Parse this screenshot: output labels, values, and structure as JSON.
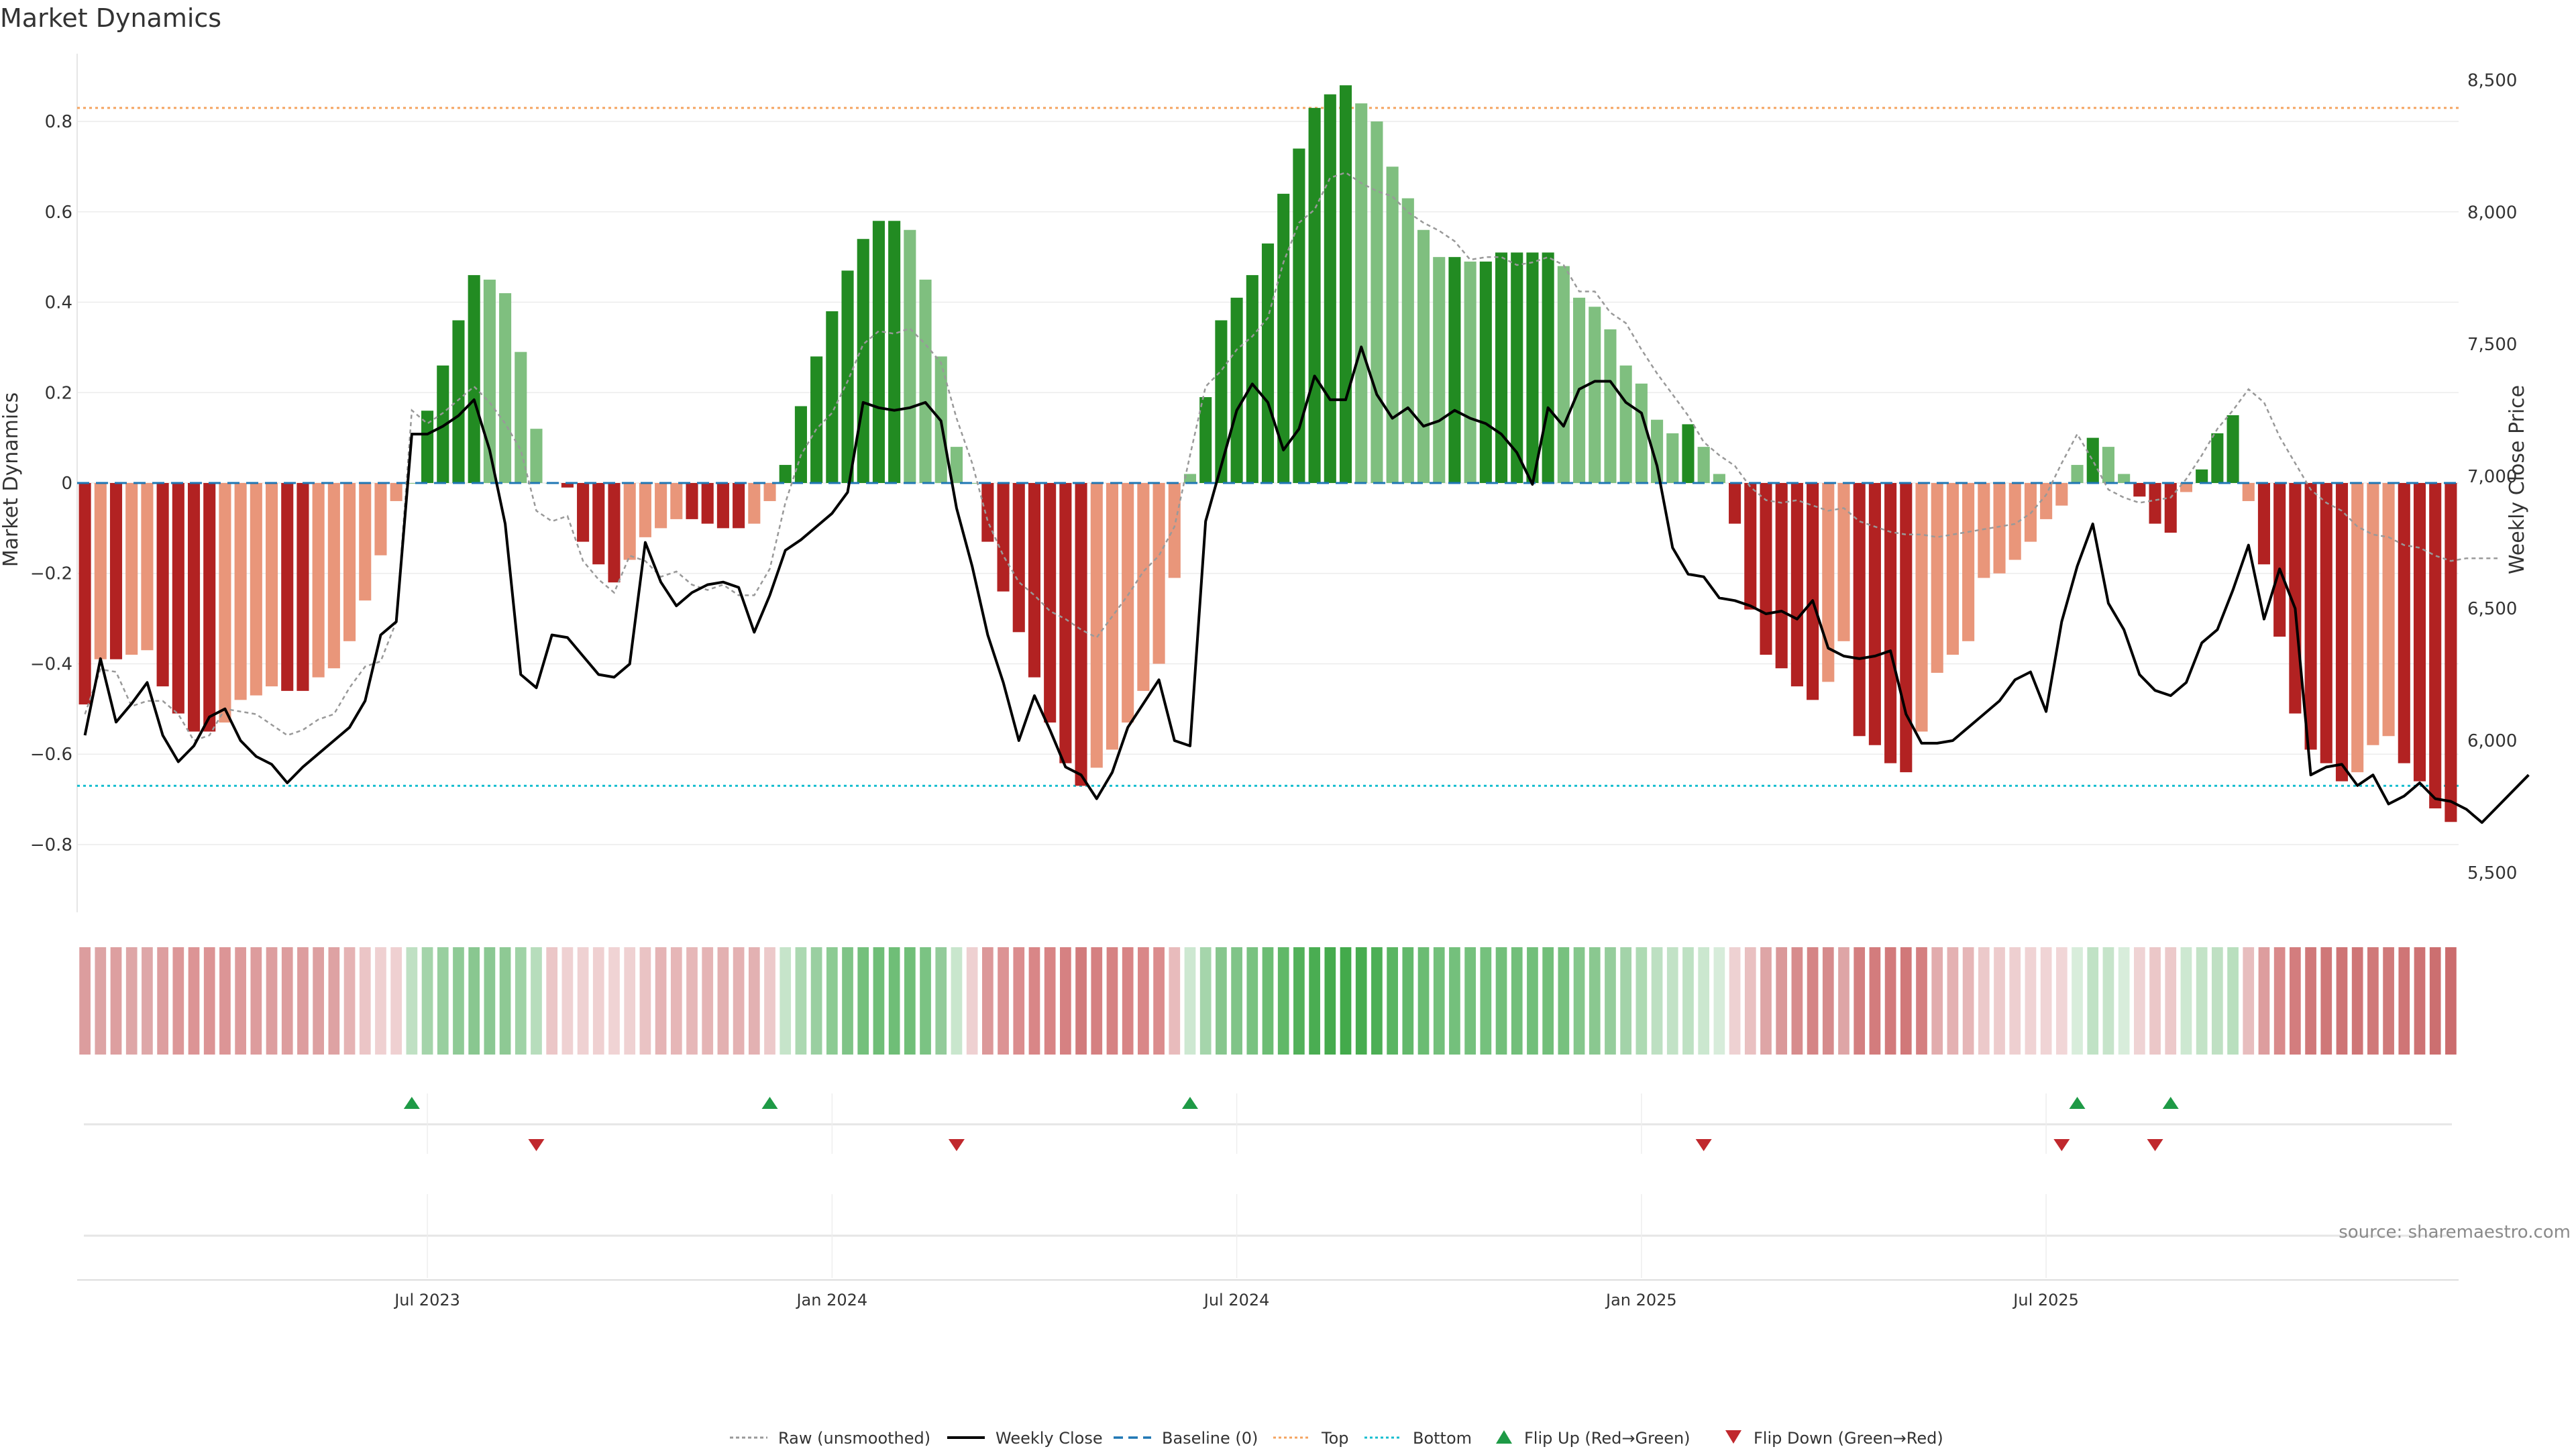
{
  "chart_data": {
    "type": "bar",
    "title": "Market Dynamics",
    "ylabel_left": "Market Dynamics",
    "ylabel_right": "Weekly Close Price",
    "ylim_left": [
      -0.95,
      0.95
    ],
    "ylim_right": [
      5350,
      8600
    ],
    "y_ticks_left": [
      0.8,
      0.6,
      0.4,
      0.2,
      0,
      -0.2,
      -0.4,
      -0.6,
      -0.8
    ],
    "y_ticks_right": [
      8500,
      8000,
      7500,
      7000,
      6500,
      6000,
      5500
    ],
    "y_tick_labels_right": [
      "8,500",
      "8,000",
      "7,500",
      "7,000",
      "6,500",
      "6,000",
      "5,500"
    ],
    "x_ticks": [
      {
        "index": 22,
        "label": "Jul 2023"
      },
      {
        "index": 48,
        "label": "Jan 2024"
      },
      {
        "index": 74,
        "label": "Jul 2024"
      },
      {
        "index": 100,
        "label": "Jan 2025"
      },
      {
        "index": 126,
        "label": "Jul 2025"
      }
    ],
    "top_level": 0.83,
    "bottom_level": -0.67,
    "series": [
      {
        "name": "Market Dynamics",
        "values": [
          -0.49,
          -0.39,
          -0.39,
          -0.38,
          -0.37,
          -0.45,
          -0.51,
          -0.55,
          -0.55,
          -0.53,
          -0.48,
          -0.47,
          -0.45,
          -0.46,
          -0.46,
          -0.43,
          -0.41,
          -0.35,
          -0.26,
          -0.16,
          -0.04,
          0.0,
          0.16,
          0.26,
          0.36,
          0.46,
          0.45,
          0.42,
          0.29,
          0.12,
          0.0,
          -0.01,
          -0.13,
          -0.18,
          -0.22,
          -0.17,
          -0.12,
          -0.1,
          -0.08,
          -0.08,
          -0.09,
          -0.1,
          -0.1,
          -0.09,
          -0.04,
          0.04,
          0.17,
          0.28,
          0.38,
          0.47,
          0.54,
          0.58,
          0.58,
          0.56,
          0.45,
          0.28,
          0.08,
          0.0,
          -0.13,
          -0.24,
          -0.33,
          -0.43,
          -0.53,
          -0.62,
          -0.67,
          -0.63,
          -0.59,
          -0.53,
          -0.46,
          -0.4,
          -0.21,
          0.02,
          0.19,
          0.36,
          0.41,
          0.46,
          0.53,
          0.64,
          0.74,
          0.83,
          0.86,
          0.88,
          0.84,
          0.8,
          0.7,
          0.63,
          0.56,
          0.5,
          0.5,
          0.49,
          0.49,
          0.51,
          0.51,
          0.51,
          0.51,
          0.48,
          0.41,
          0.39,
          0.34,
          0.26,
          0.22,
          0.14,
          0.11,
          0.13,
          0.08,
          0.02,
          -0.09,
          -0.28,
          -0.38,
          -0.41,
          -0.45,
          -0.48,
          -0.44,
          -0.35,
          -0.56,
          -0.58,
          -0.62,
          -0.64,
          -0.55,
          -0.42,
          -0.38,
          -0.35,
          -0.21,
          -0.2,
          -0.17,
          -0.13,
          -0.08,
          -0.05,
          0.04,
          0.1,
          0.08,
          0.02,
          -0.03,
          -0.09,
          -0.11,
          -0.02,
          0.03,
          0.11,
          0.15,
          -0.04,
          -0.18,
          -0.34,
          -0.51,
          -0.59,
          -0.62,
          -0.66,
          -0.64,
          -0.58,
          -0.56,
          -0.62,
          -0.66,
          -0.72,
          -0.75
        ]
      },
      {
        "name": "Weekly Close",
        "values": [
          6020,
          6310,
          6070,
          6140,
          6220,
          6020,
          5920,
          5980,
          6090,
          6120,
          6000,
          5940,
          5910,
          5840,
          5900,
          5950,
          6000,
          6050,
          6150,
          6400,
          6450,
          7160,
          7160,
          7190,
          7230,
          7290,
          7100,
          6820,
          6250,
          6200,
          6400,
          6390,
          6320,
          6250,
          6240,
          6290,
          6750,
          6600,
          6510,
          6560,
          6590,
          6600,
          6580,
          6410,
          6550,
          6720,
          6760,
          6810,
          6860,
          6940,
          7280,
          7260,
          7250,
          7260,
          7280,
          7210,
          6880,
          6660,
          6400,
          6220,
          6000,
          6170,
          6040,
          5900,
          5870,
          5780,
          5880,
          6050,
          6140,
          6230,
          6000,
          5980,
          6830,
          7040,
          7250,
          7350,
          7280,
          7100,
          7180,
          7380,
          7290,
          7290,
          7490,
          7310,
          7220,
          7260,
          7190,
          7210,
          7250,
          7220,
          7200,
          7160,
          7090,
          6970,
          7260,
          7190,
          7330,
          7360,
          7360,
          7280,
          7240,
          7040,
          6730,
          6630,
          6620,
          6540,
          6530,
          6510,
          6480,
          6490,
          6460,
          6530,
          6350,
          6320,
          6310,
          6320,
          6340,
          6100,
          5990,
          5990,
          6000,
          6050,
          6100,
          6150,
          6230,
          6260,
          6110,
          6450,
          6660,
          6820,
          6520,
          6420,
          6250,
          6190,
          6170,
          6220,
          6370,
          6420,
          6570,
          6740,
          6460,
          6650,
          6500,
          5870,
          5900,
          5910,
          5830,
          5870,
          5760,
          5790,
          5840,
          5780,
          5770,
          5740,
          5690,
          5750,
          5810,
          5870
        ]
      },
      {
        "name": "Raw (unsmoothed)",
        "values": [
          6100,
          6270,
          6260,
          6130,
          6150,
          6150,
          6100,
          6000,
          6020,
          6120,
          6110,
          6100,
          6060,
          6020,
          6040,
          6080,
          6100,
          6200,
          6280,
          6300,
          6450,
          7250,
          7200,
          7240,
          7290,
          7340,
          7280,
          7200,
          7100,
          6870,
          6830,
          6850,
          6680,
          6610,
          6560,
          6700,
          6680,
          6620,
          6640,
          6590,
          6570,
          6590,
          6550,
          6550,
          6650,
          6900,
          7080,
          7180,
          7240,
          7360,
          7500,
          7550,
          7540,
          7560,
          7500,
          7430,
          7220,
          7050,
          6830,
          6700,
          6600,
          6550,
          6490,
          6460,
          6420,
          6390,
          6470,
          6550,
          6640,
          6700,
          6810,
          7080,
          7340,
          7400,
          7480,
          7530,
          7600,
          7810,
          7960,
          8010,
          8130,
          8150,
          8110,
          8080,
          8060,
          8000,
          7960,
          7930,
          7890,
          7820,
          7830,
          7830,
          7800,
          7810,
          7830,
          7800,
          7700,
          7700,
          7620,
          7580,
          7480,
          7390,
          7310,
          7230,
          7130,
          7080,
          7040,
          6960,
          6910,
          6900,
          6910,
          6890,
          6870,
          6880,
          6830,
          6810,
          6790,
          6780,
          6780,
          6770,
          6780,
          6790,
          6800,
          6810,
          6820,
          6860,
          6930,
          7050,
          7160,
          7060,
          6950,
          6920,
          6900,
          6910,
          6920,
          6990,
          7080,
          7180,
          7250,
          7330,
          7280,
          7150,
          7050,
          6950,
          6900,
          6870,
          6810,
          6780,
          6770,
          6740,
          6730,
          6700,
          6680,
          6690,
          6690,
          6690
        ]
      }
    ],
    "strip_colors": [
      "#dc9d9e",
      "#dda4a5",
      "#dd9fa0",
      "#dea6a7",
      "#dea7a8",
      "#dd9e9f",
      "#dc9798",
      "#dc9495",
      "#dc9495",
      "#dc9596",
      "#dd9a9b",
      "#dd9c9d",
      "#dd9e9f",
      "#dd9d9e",
      "#dd9d9e",
      "#dda0a1",
      "#dea2a3",
      "#e5b3b4",
      "#ebc5c6",
      "#efd0d1",
      "#efd0d1",
      "#bfe0c3",
      "#a4d4aa",
      "#98cf9f",
      "#8fca96",
      "#89c790",
      "#8bc893",
      "#8ec994",
      "#9fd2a6",
      "#b7ddbc",
      "#ebc6c7",
      "#efd1d2",
      "#efd1d2",
      "#efd0d1",
      "#f0d3d4",
      "#efd1d2",
      "#eac3c4",
      "#e5b4b5",
      "#e6b6b7",
      "#e6b7b8",
      "#e5b4b5",
      "#e3b0b1",
      "#e4b1b2",
      "#e3b1b2",
      "#ecc9ca",
      "#c6e4ca",
      "#abd8b1",
      "#9acfa1",
      "#8ccb93",
      "#7fc487",
      "#74c07c",
      "#6fbe77",
      "#6fbe77",
      "#70bf78",
      "#7bc383",
      "#93cb9a",
      "#c9e6cd",
      "#eed0d1",
      "#dc9899",
      "#dc9394",
      "#db8d8e",
      "#d98687",
      "#d88485",
      "#d68182",
      "#d17b7c",
      "#d58081",
      "#d68283",
      "#d88485",
      "#d98788",
      "#db8c8d",
      "#e8bbbc",
      "#cde8d1",
      "#a5d5ab",
      "#86c68d",
      "#80c488",
      "#79c281",
      "#6cbd74",
      "#60b868",
      "#52b15a",
      "#4aad52",
      "#46ab4e",
      "#43aa4b",
      "#47ac4f",
      "#4daf55",
      "#5ab562",
      "#63b96b",
      "#6bbc73",
      "#73c07b",
      "#74c07c",
      "#75c17d",
      "#75c17d",
      "#72bf7a",
      "#72bf7a",
      "#72bf7a",
      "#72bf7a",
      "#77c17f",
      "#85c78c",
      "#8ac890",
      "#95cd9c",
      "#a3d3a9",
      "#addab3",
      "#bde0c2",
      "#c2e2c6",
      "#bee1c3",
      "#cbe7cf",
      "#d7ecda",
      "#eed1d2",
      "#e9c0c1",
      "#dea5a6",
      "#da9899",
      "#d78c8d",
      "#d58586",
      "#d68b8c",
      "#dea5a6",
      "#d47f80",
      "#d37c7d",
      "#d27a7b",
      "#d17879",
      "#d47f80",
      "#e2acad",
      "#e4b1b2",
      "#e6b6b7",
      "#ecc9ca",
      "#edcbcc",
      "#eecfd0",
      "#f0d3d4",
      "#f0d4d5",
      "#f1d6d7",
      "#d8eddb",
      "#c0e2c5",
      "#c6e4ca",
      "#d8eddb",
      "#efd3d4",
      "#ebc7c8",
      "#ecc9ca",
      "#cde8d1",
      "#c3e3c7",
      "#bfe0c3",
      "#b9dfbe",
      "#e7bdbe",
      "#dd9d9e",
      "#d98a8b",
      "#d37d7e",
      "#d07879",
      "#cf7778",
      "#ce7475",
      "#cf7576",
      "#d07979",
      "#d07a7a",
      "#cf7576",
      "#ce7374",
      "#cc6f70",
      "#cb6c6d"
    ],
    "flips_up": [
      21,
      44,
      71,
      128,
      134
    ],
    "flips_down": [
      29,
      56,
      104,
      127,
      133
    ],
    "legend": [
      {
        "label": "Raw (unsmoothed)"
      },
      {
        "label": "Weekly Close"
      },
      {
        "label": "Baseline (0)"
      },
      {
        "label": "Top"
      },
      {
        "label": "Bottom"
      },
      {
        "label": "Flip Up (Red→Green)"
      },
      {
        "label": "Flip Down (Green→Red)"
      }
    ],
    "source_note": "source: sharemaestro.com",
    "colors": {
      "strong_green": "#228b22",
      "light_green": "#7fbf7f",
      "strong_red": "#b22222",
      "light_red": "#e9967a",
      "close_line": "#000000",
      "raw_line": "#999999",
      "baseline": "#1f77b4",
      "top_line": "#f4a460",
      "bottom_line": "#17becf",
      "flip_up": "#1e9a46",
      "flip_down": "#c0282d"
    }
  }
}
